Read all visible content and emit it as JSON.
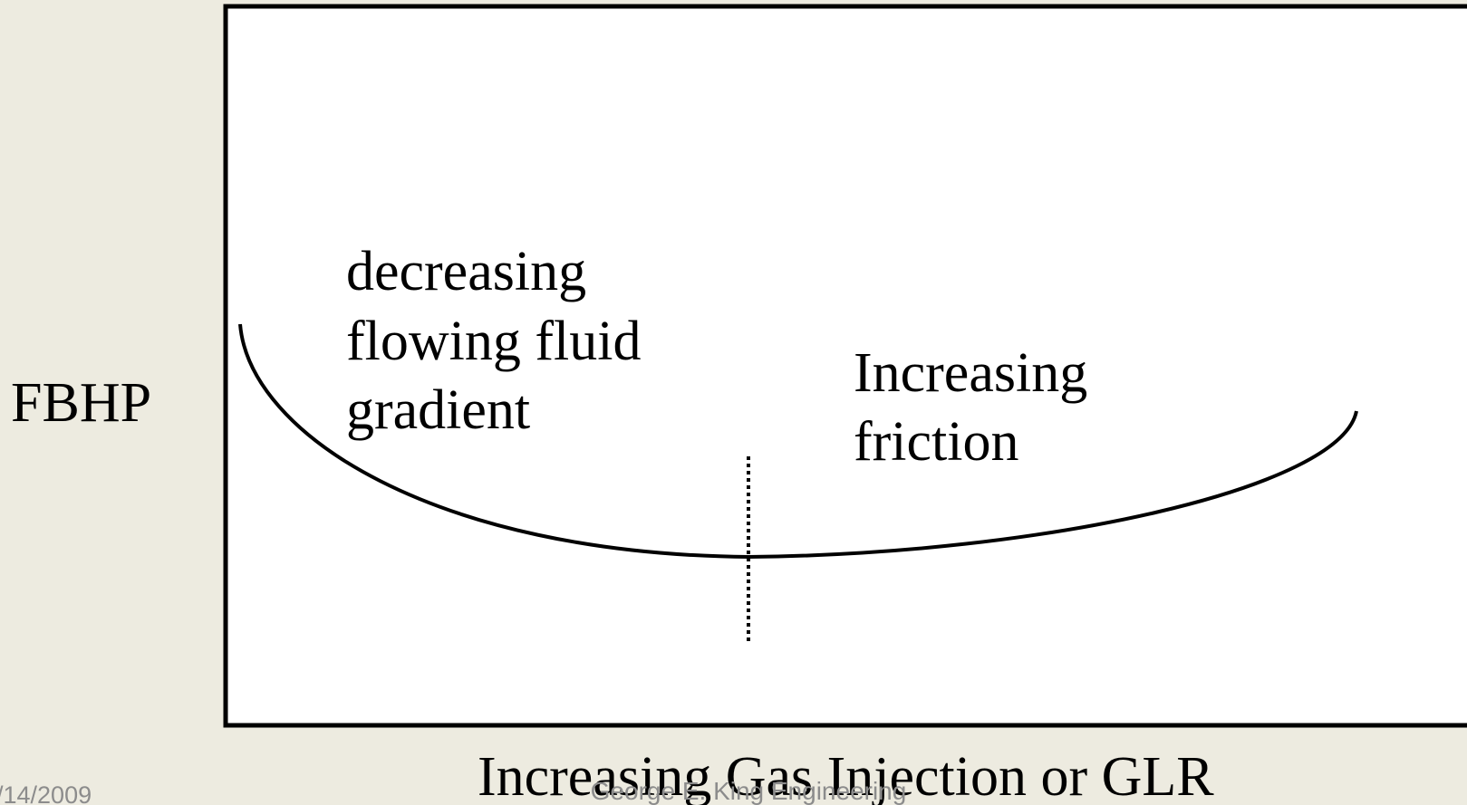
{
  "y_axis_label": "FBHP",
  "x_axis_label": "Increasing Gas Injection or GLR",
  "left_annotation": [
    "decreasing",
    "flowing fluid",
    "gradient"
  ],
  "right_annotation": [
    "Increasing",
    "friction"
  ],
  "footer": {
    "date": "/14/2009",
    "author": "George E. King Engineering"
  }
}
